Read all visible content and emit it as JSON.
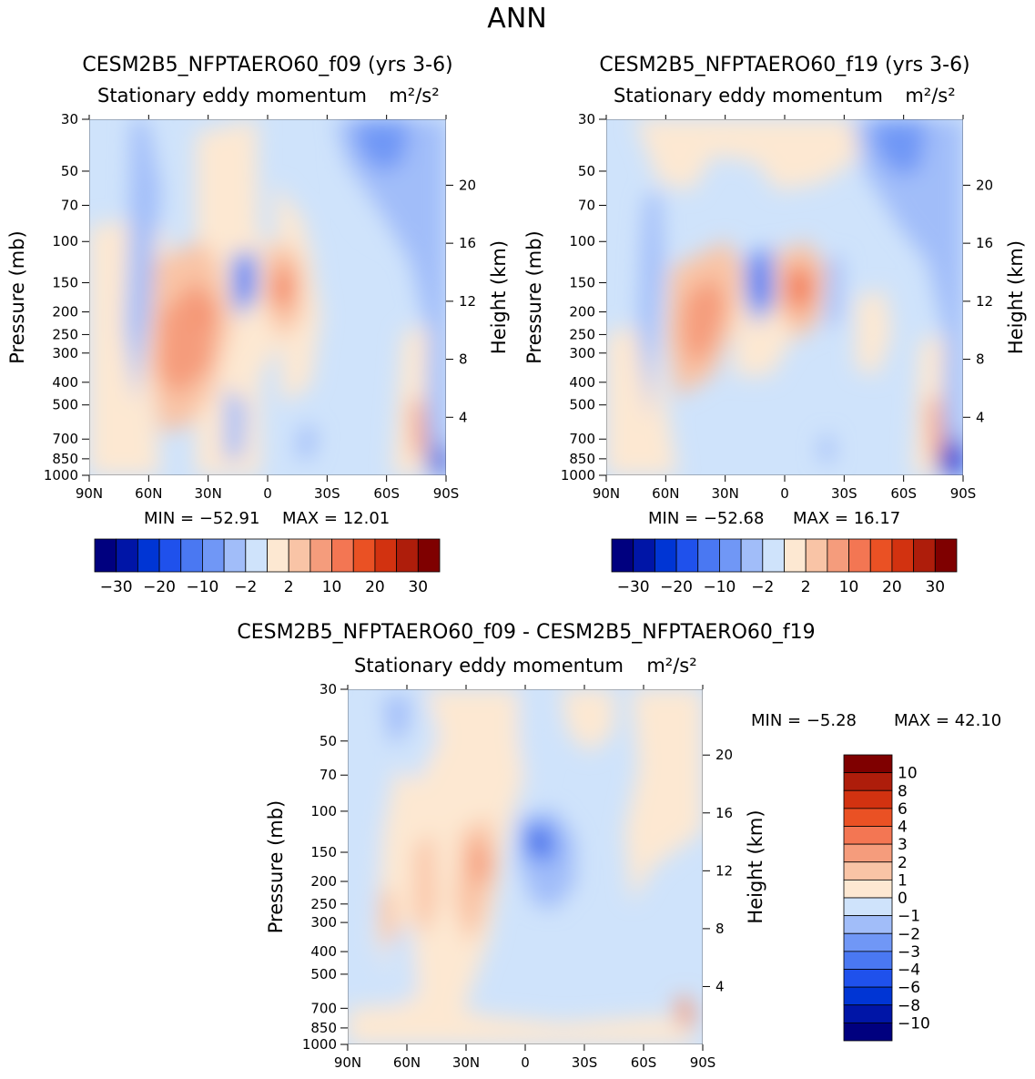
{
  "page_title": "ANN",
  "colors": {
    "b9": "#00007f",
    "b8": "#0015a7",
    "b7": "#0035d4",
    "b6": "#1f51ec",
    "b5": "#4a78f2",
    "b4": "#7097f6",
    "b3": "#a1bdf9",
    "b2": "#cfe3fb",
    "r2": "#fde8d2",
    "r3": "#f9c4a6",
    "r4": "#f59c7c",
    "r5": "#f37653",
    "r6": "#ea5124",
    "r7": "#d23210",
    "r8": "#ae1d0b",
    "r9": "#7f0000"
  },
  "chart_data": [
    {
      "type": "contour",
      "title": "CESM2B5_NFPTAERO60_f09 (yrs 3-6)",
      "subtitle": "Stationary eddy momentum",
      "units": "m²/s²",
      "xlabel": "",
      "ylabel": "Pressure (mb)",
      "y2label": "Height (km)",
      "x_ticks": [
        "90N",
        "60N",
        "30N",
        "0",
        "30S",
        "60S",
        "90S"
      ],
      "y_ticks": [
        "30",
        "50",
        "70",
        "100",
        "150",
        "200",
        "250",
        "300",
        "400",
        "500",
        "700",
        "850",
        "1000"
      ],
      "y2_ticks": [
        "20",
        "16",
        "12",
        "8",
        "4"
      ],
      "min_label": "MIN = -52.91",
      "max_label": "MAX = 12.01",
      "min": -52.91,
      "max": 12.01,
      "colorbar": {
        "orientation": "horizontal",
        "labels": [
          "-30",
          "-20",
          "-10",
          "-2",
          "2",
          "10",
          "20",
          "30"
        ]
      },
      "features": [
        {
          "kind": "tropospheric dipole",
          "lat": 30,
          "pressure": 250,
          "value": "+5 to +10"
        },
        {
          "kind": "jet maximum",
          "lat": -8,
          "pressure": 150,
          "value": "+10"
        },
        {
          "kind": "minimum",
          "lat": 12,
          "pressure": 150,
          "value": "-5"
        },
        {
          "kind": "stratospheric minimum",
          "lat": -50,
          "pressure": 40,
          "value": "-10"
        }
      ]
    },
    {
      "type": "contour",
      "title": "CESM2B5_NFPTAERO60_f19 (yrs 3-6)",
      "subtitle": "Stationary eddy momentum",
      "units": "m²/s²",
      "xlabel": "",
      "ylabel": "Pressure (mb)",
      "y2label": "Height (km)",
      "x_ticks": [
        "90N",
        "60N",
        "30N",
        "0",
        "30S",
        "60S",
        "90S"
      ],
      "y_ticks": [
        "30",
        "50",
        "70",
        "100",
        "150",
        "200",
        "250",
        "300",
        "400",
        "500",
        "700",
        "850",
        "1000"
      ],
      "y2_ticks": [
        "20",
        "16",
        "12",
        "8",
        "4"
      ],
      "min_label": "MIN = -52.68",
      "max_label": "MAX = 16.17",
      "min": -52.68,
      "max": 16.17,
      "colorbar": {
        "orientation": "horizontal",
        "labels": [
          "-30",
          "-20",
          "-10",
          "-2",
          "2",
          "10",
          "20",
          "30"
        ]
      },
      "features": [
        {
          "kind": "tropospheric maximum",
          "lat": 30,
          "pressure": 300,
          "value": "+5"
        },
        {
          "kind": "jet maximum",
          "lat": -8,
          "pressure": 150,
          "value": "+10 to +20"
        },
        {
          "kind": "minimum",
          "lat": 12,
          "pressure": 150,
          "value": "-5"
        },
        {
          "kind": "stratospheric minimum",
          "lat": -55,
          "pressure": 40,
          "value": "-10"
        }
      ]
    },
    {
      "type": "contour",
      "title": "CESM2B5_NFPTAERO60_f09 - CESM2B5_NFPTAERO60_f19",
      "subtitle": "Stationary eddy momentum",
      "units": "m²/s²",
      "xlabel": "",
      "ylabel": "Pressure (mb)",
      "y2label": "Height (km)",
      "x_ticks": [
        "90N",
        "60N",
        "30N",
        "0",
        "30S",
        "60S",
        "90S"
      ],
      "y_ticks": [
        "30",
        "50",
        "70",
        "100",
        "150",
        "200",
        "250",
        "300",
        "400",
        "500",
        "700",
        "850",
        "1000"
      ],
      "y2_ticks": [
        "20",
        "16",
        "12",
        "8",
        "4"
      ],
      "min_label": "MIN = -5.28",
      "max_label": "MAX = 42.10",
      "min": -5.28,
      "max": 42.1,
      "colorbar": {
        "orientation": "vertical",
        "labels": [
          "10",
          "8",
          "6",
          "4",
          "3",
          "2",
          "1",
          "0",
          "-1",
          "-2",
          "-3",
          "-4",
          "-6",
          "-8",
          "-10"
        ]
      },
      "features": [
        {
          "kind": "minimum",
          "lat": -5,
          "pressure": 150,
          "value": "-4"
        },
        {
          "kind": "maximum",
          "lat": 25,
          "pressure": 180,
          "value": "+2"
        },
        {
          "kind": "maximum",
          "lat": 50,
          "pressure": 270,
          "value": "+2"
        }
      ]
    }
  ]
}
